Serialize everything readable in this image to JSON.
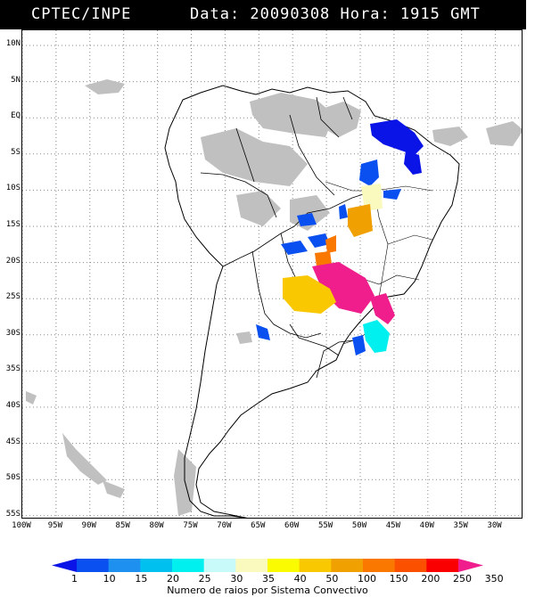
{
  "header": {
    "agency": "CPTEC/INPE",
    "info": "Data: 20090308 Hora: 1915 GMT"
  },
  "map": {
    "lat_labels": [
      "10N",
      "5N",
      "EQ",
      "5S",
      "10S",
      "15S",
      "20S",
      "25S",
      "30S",
      "35S",
      "40S",
      "45S",
      "50S",
      "55S"
    ],
    "lon_labels": [
      "100W",
      "95W",
      "90W",
      "85W",
      "80W",
      "75W",
      "70W",
      "65W",
      "60W",
      "55W",
      "50W",
      "45W",
      "40W",
      "35W",
      "30W"
    ],
    "cloud_color": "#c0c0c0",
    "land_outline_color": "#000000"
  },
  "legend": {
    "title": "Numero de raios por Sistema Convectivo",
    "labels": [
      "1",
      "10",
      "15",
      "20",
      "25",
      "30",
      "35",
      "40",
      "50",
      "100",
      "150",
      "200",
      "250",
      "350"
    ],
    "colors": [
      "#0a14e6",
      "#0a50f0",
      "#1e90f0",
      "#00c0f0",
      "#00f0f0",
      "#c8fafa",
      "#fafabe",
      "#fafa00",
      "#fac800",
      "#f0a000",
      "#fa7800",
      "#fa5000",
      "#fa0000",
      "#f01e8c"
    ]
  }
}
